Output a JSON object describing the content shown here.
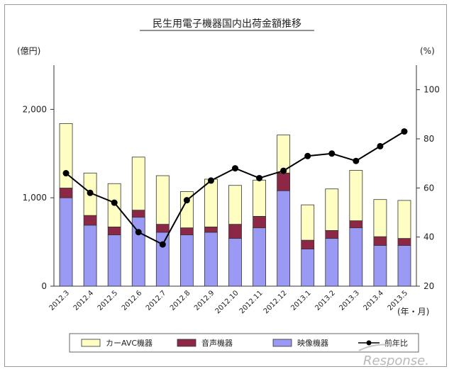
{
  "chart_data": {
    "type": "bar",
    "title": "民生用電子機器国内出荷金額推移",
    "y_left_unit": "(億円)",
    "y_right_unit": "(%)",
    "x_unit": "(年・月)",
    "categories": [
      "2012.3",
      "2012.4",
      "2012.5",
      "2012.6",
      "2012.7",
      "2012.8",
      "2012.9",
      "2012.10",
      "2012.11",
      "2012.12",
      "2013.1",
      "2013.2",
      "2013.3",
      "2013.4",
      "2013.5"
    ],
    "y_left_ticks": [
      "0",
      "1,000",
      "2,000"
    ],
    "y_right_ticks": [
      "20",
      "40",
      "60",
      "80",
      "100"
    ],
    "ylim_left": [
      0,
      2500
    ],
    "ylim_right": [
      20,
      110
    ],
    "stacked": true,
    "series": [
      {
        "name": "映像機器",
        "color": "#9a9af5",
        "values": [
          1000,
          690,
          580,
          780,
          610,
          580,
          610,
          540,
          660,
          1080,
          420,
          540,
          660,
          460,
          460
        ]
      },
      {
        "name": "音声機器",
        "color": "#8c2846",
        "values": [
          110,
          110,
          90,
          80,
          90,
          80,
          60,
          160,
          130,
          200,
          100,
          90,
          80,
          100,
          80
        ]
      },
      {
        "name": "カーAVC機器",
        "color": "#fefec2",
        "values": [
          730,
          480,
          490,
          600,
          550,
          410,
          540,
          440,
          410,
          430,
          400,
          470,
          570,
          420,
          430
        ]
      }
    ],
    "line_series": {
      "name": "前年比",
      "color": "#000000",
      "axis": "right",
      "values": [
        66,
        58,
        54,
        42,
        37,
        55,
        63,
        68,
        64,
        67,
        73,
        74,
        71,
        77,
        83
      ]
    },
    "legend_placement": "bottom",
    "grid": false
  },
  "watermark": "Response."
}
